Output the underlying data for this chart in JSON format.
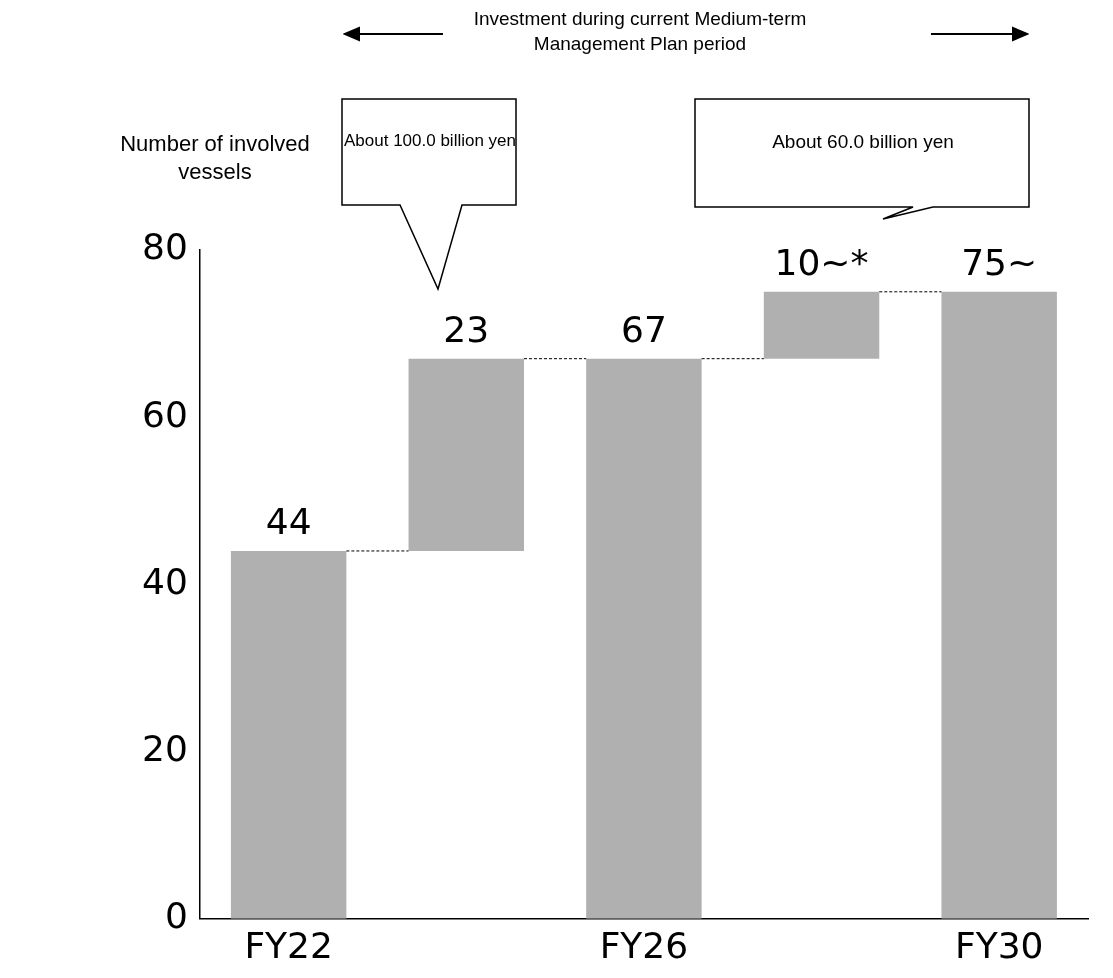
{
  "chart_data": {
    "type": "bar",
    "ylabel": "Number of involved vessels",
    "categories": [
      "FY22",
      null,
      "FY26",
      null,
      "FY30"
    ],
    "values": [
      44,
      23,
      67,
      8,
      75
    ],
    "base": [
      0,
      44,
      0,
      67,
      0
    ],
    "value_labels": [
      "44",
      "23",
      "67",
      null,
      "75~"
    ],
    "color": "#b0b0b0",
    "ylim": [
      0,
      80
    ],
    "yticks": [
      0,
      20,
      40,
      60,
      80
    ],
    "grid": false,
    "legend": false,
    "annotations": [
      "Investment during current Medium-term Management Plan period",
      "About 100.0 billion yen",
      "About 60.0 billion yen",
      {
        "text": "10~*",
        "y": 75
      }
    ]
  }
}
